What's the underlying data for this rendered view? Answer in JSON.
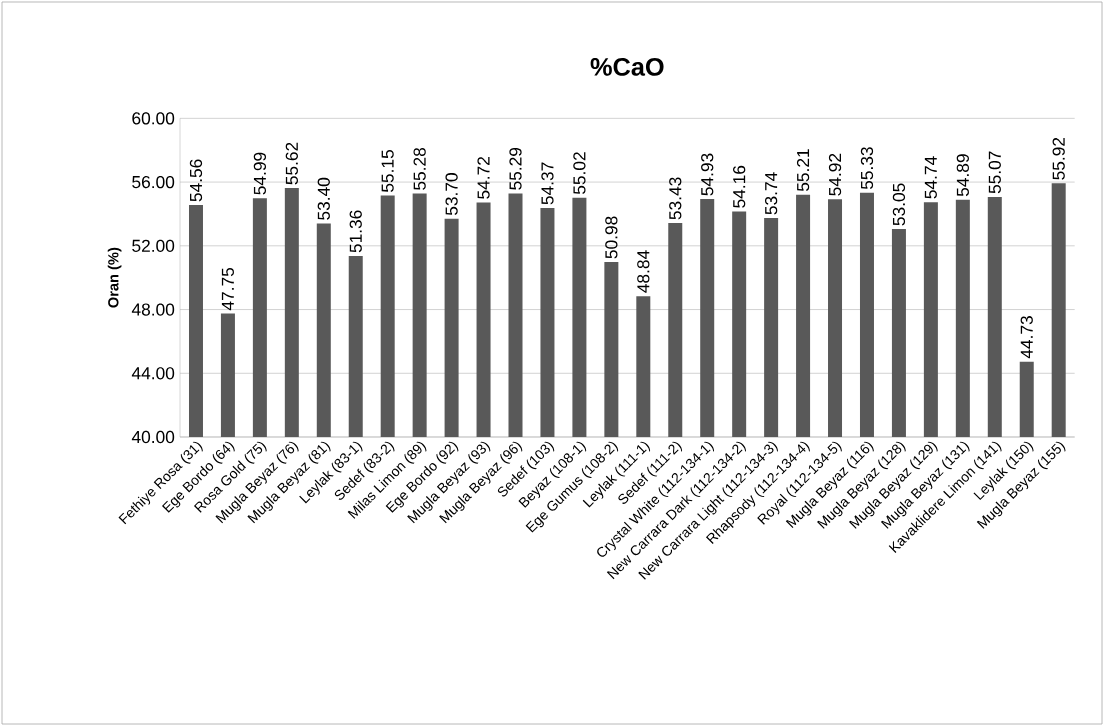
{
  "chart_data": {
    "type": "bar",
    "title": "%CaO",
    "ylabel": "Oran (%)",
    "categories": [
      "Fethiye Rosa (31)",
      "Ege Bordo (64)",
      "Rosa Gold (75)",
      "Mugla Beyaz (76)",
      "Mugla Beyaz (81)",
      "Leylak (83-1)",
      "Sedef (83-2)",
      "Milas Limon (89)",
      "Ege Bordo (92)",
      "Mugla Beyaz (93)",
      "Mugla Beyaz (96)",
      "Sedef (103)",
      "Beyaz (108-1)",
      "Ege Gumus (108-2)",
      "Leylak (111-1)",
      "Sedef (111-2)",
      "Crystal White (112-134-1)",
      "New Carrara Dark (112-134-2)",
      "New Carrara Light (112-134-3)",
      "Rhapsody (112-134-4)",
      "Royal (112-134-5)",
      "Mugla Beyaz (116)",
      "Mugla Beyaz (128)",
      "Mugla Beyaz (129)",
      "Mugla Beyaz (131)",
      "Kavaklidere Limon (141)",
      "Leylak (150)",
      "Mugla Beyaz (155)"
    ],
    "values": [
      54.56,
      47.75,
      54.99,
      55.62,
      53.4,
      51.36,
      55.15,
      55.28,
      53.7,
      54.72,
      55.29,
      54.37,
      55.02,
      50.98,
      48.84,
      53.43,
      54.93,
      54.16,
      53.74,
      55.21,
      54.92,
      55.33,
      53.05,
      54.74,
      54.89,
      55.07,
      44.73,
      55.92
    ],
    "value_labels": [
      "54.56",
      "47.75",
      "54.99",
      "55.62",
      "53.40",
      "51.36",
      "55.15",
      "55.28",
      "53.70",
      "54.72",
      "55.29",
      "54.37",
      "55.02",
      "50.98",
      "48.84",
      "53.43",
      "54.93",
      "54.16",
      "53.74",
      "55.21",
      "54.92",
      "55.33",
      "53.05",
      "54.74",
      "54.89",
      "55.07",
      "44.73",
      "55.92"
    ],
    "color": "#595959",
    "ylim": [
      40,
      60
    ],
    "yticks": [
      {
        "value": 40,
        "label": "40.00"
      },
      {
        "value": 44,
        "label": "44.00"
      },
      {
        "value": 48,
        "label": "48.00"
      },
      {
        "value": 52,
        "label": "52.00"
      },
      {
        "value": 56,
        "label": "56.00"
      },
      {
        "value": 60,
        "label": "60.00"
      }
    ],
    "grid": "y"
  }
}
